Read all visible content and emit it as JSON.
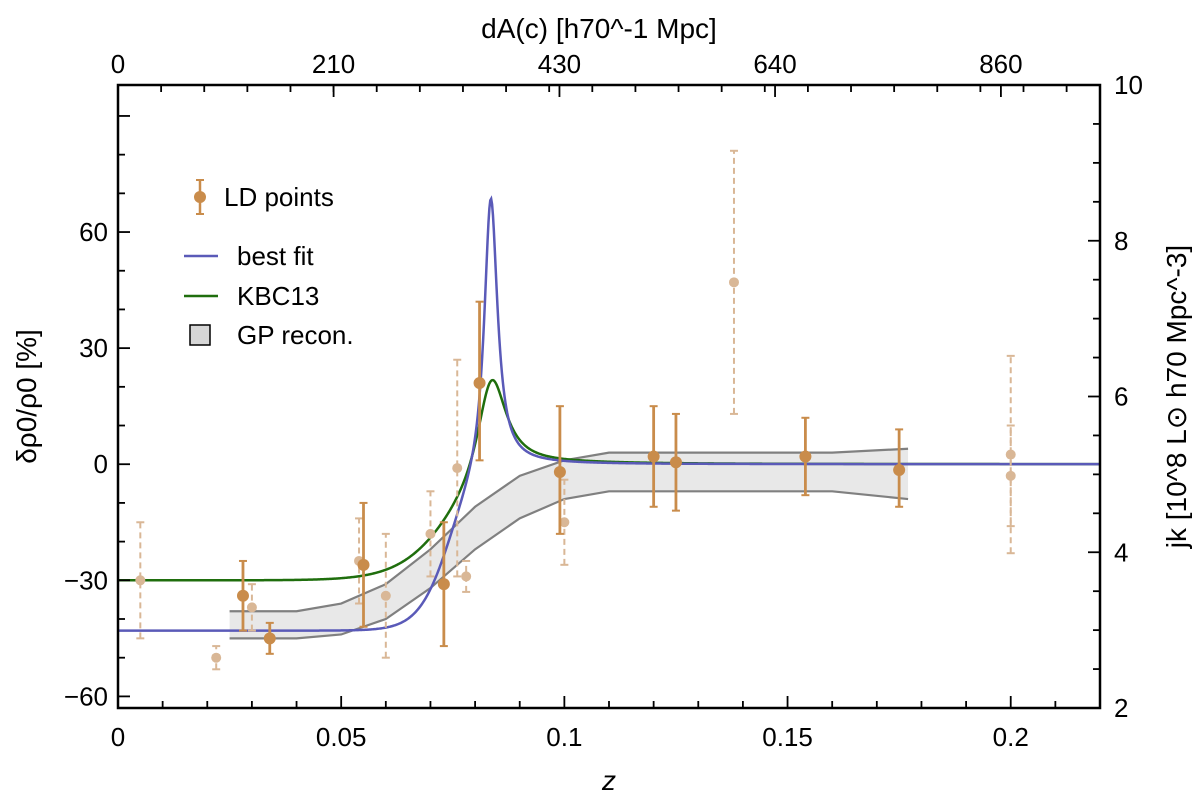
{
  "chart_data": {
    "type": "scatter",
    "title": "",
    "xlabel": "z",
    "ylabel_left": "δρ0/ρ0 [%]",
    "ylabel_right": "jk [10^8 L⊙ h70 Mpc^-3]",
    "xlabel_top": "dA(c) [h70^-1 Mpc]",
    "xlim": [
      0,
      0.22
    ],
    "ylim": [
      -63,
      98
    ],
    "ylim_right": [
      2,
      10
    ],
    "x_ticks": [
      0,
      0.05,
      0.1,
      0.15,
      0.2
    ],
    "x_tick_labels": [
      "0",
      "0.05",
      "0.1",
      "0.15",
      "0.2"
    ],
    "y_ticks": [
      -60,
      -30,
      0,
      30,
      60
    ],
    "y_tick_labels": [
      "−60",
      "−30",
      "0",
      "30",
      "60"
    ],
    "y_right_ticks": [
      2,
      4,
      6,
      8,
      10
    ],
    "y_right_tick_labels": [
      "2",
      "4",
      "6",
      "8",
      "10"
    ],
    "x_top_ticks": [
      0,
      210,
      430,
      640,
      860
    ],
    "x_top_tick_labels": [
      "0",
      "210",
      "430",
      "640",
      "860"
    ],
    "x_top_per_z": 4347.8,
    "legend": {
      "position": "top-left",
      "entries": [
        "LD points",
        "best fit",
        "KBC13",
        "GP recon."
      ]
    },
    "colors": {
      "points_main": "#c98c4b",
      "points_faint": "#d9b796",
      "best_fit": "#5a5ab8",
      "kbc13": "#1f6e0d",
      "band_fill": "#e8e8e8",
      "band_edge": "#808080"
    },
    "ld_points": [
      {
        "x": 0.028,
        "y": -34,
        "lo": -43,
        "hi": -25
      },
      {
        "x": 0.034,
        "y": -45,
        "lo": -49,
        "hi": -41
      },
      {
        "x": 0.055,
        "y": -26,
        "lo": -42,
        "hi": -10
      },
      {
        "x": 0.073,
        "y": -31,
        "lo": -47,
        "hi": -15
      },
      {
        "x": 0.081,
        "y": 21,
        "lo": 1,
        "hi": 42
      },
      {
        "x": 0.099,
        "y": -2,
        "lo": -18,
        "hi": 15
      },
      {
        "x": 0.12,
        "y": 2,
        "lo": -11,
        "hi": 15
      },
      {
        "x": 0.125,
        "y": 0.5,
        "lo": -12,
        "hi": 13
      },
      {
        "x": 0.154,
        "y": 2,
        "lo": -8,
        "hi": 12
      },
      {
        "x": 0.175,
        "y": -1.5,
        "lo": -11,
        "hi": 9
      }
    ],
    "ld_faint_points": [
      {
        "x": 0.005,
        "y": -30,
        "lo": -45,
        "hi": -15
      },
      {
        "x": 0.022,
        "y": -50,
        "lo": -53,
        "hi": -47
      },
      {
        "x": 0.03,
        "y": -37,
        "lo": -43,
        "hi": -31
      },
      {
        "x": 0.054,
        "y": -25,
        "lo": -36,
        "hi": -14
      },
      {
        "x": 0.06,
        "y": -34,
        "lo": -50,
        "hi": -18
      },
      {
        "x": 0.07,
        "y": -18,
        "lo": -29,
        "hi": -7
      },
      {
        "x": 0.076,
        "y": -1,
        "lo": -29,
        "hi": 27
      },
      {
        "x": 0.078,
        "y": -29,
        "lo": -33,
        "hi": -25
      },
      {
        "x": 0.1,
        "y": -15,
        "lo": -26,
        "hi": -4
      },
      {
        "x": 0.138,
        "y": 47,
        "lo": 13,
        "hi": 81
      },
      {
        "x": 0.2,
        "y": 2.5,
        "lo": -23,
        "hi": 28
      },
      {
        "x": 0.2,
        "y": -3,
        "lo": -16,
        "hi": 10
      }
    ],
    "best_fit_params": {
      "y_low": -43,
      "z0": 0.074,
      "w": 0.0035,
      "peak_z": 0.0835,
      "peak_amp": 76,
      "peak_w": 0.0018
    },
    "kbc13_params": {
      "y_low": -30,
      "z0": 0.074,
      "w": 0.006,
      "peak_z": 0.0835,
      "peak_amp": 32,
      "peak_w": 0.004
    },
    "gp_band": {
      "x": [
        0.025,
        0.04,
        0.05,
        0.06,
        0.07,
        0.08,
        0.09,
        0.1,
        0.11,
        0.12,
        0.14,
        0.16,
        0.177
      ],
      "upper": [
        -38,
        -38,
        -36,
        -31,
        -22,
        -11,
        -3,
        1,
        3,
        3,
        3,
        3,
        4
      ],
      "lower": [
        -45,
        -45,
        -44,
        -40,
        -32,
        -22,
        -14,
        -9,
        -7,
        -7,
        -7,
        -7,
        -9
      ]
    }
  }
}
